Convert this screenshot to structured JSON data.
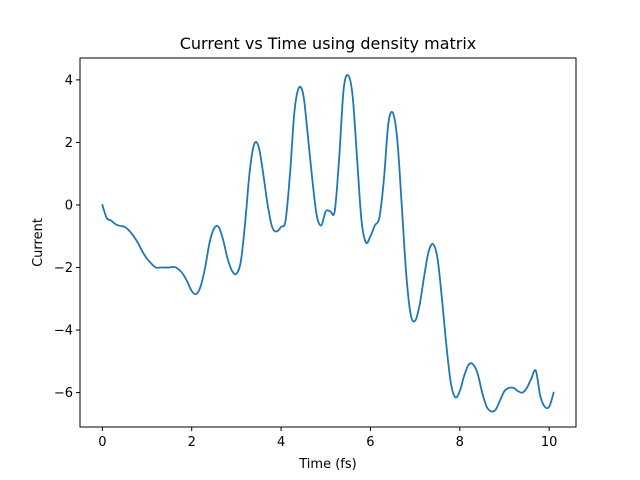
{
  "chart_data": {
    "type": "line",
    "title": "Current vs Time using density matrix",
    "xlabel": "Time (fs)",
    "ylabel": "Current",
    "xlim": [
      -0.5,
      10.6
    ],
    "ylim": [
      -7.1,
      4.7
    ],
    "xticks": [
      0,
      2,
      4,
      6,
      8,
      10
    ],
    "yticks": [
      -6,
      -4,
      -2,
      0,
      2,
      4
    ],
    "xtick_labels": [
      "0",
      "2",
      "4",
      "6",
      "8",
      "10"
    ],
    "ytick_labels": [
      "−6",
      "−4",
      "−2",
      "0",
      "2",
      "4"
    ],
    "grid": false,
    "legend": "none",
    "colors": {
      "line": "#1f77b4",
      "axes": "#000000",
      "background": "#ffffff"
    },
    "series": [
      {
        "x": [
          0,
          0.1,
          0.2,
          0.3,
          0.4,
          0.5,
          0.6,
          0.7,
          0.8,
          0.9,
          1.0,
          1.1,
          1.2,
          1.3,
          1.4,
          1.5,
          1.6,
          1.7,
          1.8,
          1.9,
          2.0,
          2.1,
          2.2,
          2.3,
          2.4,
          2.5,
          2.6,
          2.7,
          2.8,
          2.9,
          3.0,
          3.1,
          3.2,
          3.3,
          3.4,
          3.5,
          3.6,
          3.7,
          3.8,
          3.9,
          4.0,
          4.1,
          4.2,
          4.3,
          4.4,
          4.5,
          4.6,
          4.7,
          4.8,
          4.9,
          5.0,
          5.1,
          5.2,
          5.3,
          5.4,
          5.5,
          5.6,
          5.7,
          5.8,
          5.9,
          6.0,
          6.1,
          6.2,
          6.3,
          6.4,
          6.5,
          6.6,
          6.7,
          6.8,
          6.9,
          7.0,
          7.1,
          7.2,
          7.3,
          7.4,
          7.5,
          7.6,
          7.7,
          7.8,
          7.9,
          8.0,
          8.1,
          8.2,
          8.3,
          8.4,
          8.5,
          8.6,
          8.7,
          8.8,
          8.9,
          9.0,
          9.1,
          9.2,
          9.3,
          9.4,
          9.5,
          9.6,
          9.7,
          9.8,
          9.9,
          10.0,
          10.1
        ],
        "y": [
          0,
          -0.42,
          -0.5,
          -0.62,
          -0.67,
          -0.7,
          -0.82,
          -1.0,
          -1.22,
          -1.5,
          -1.72,
          -1.88,
          -2.0,
          -2.0,
          -2.0,
          -2.0,
          -1.98,
          -2.05,
          -2.2,
          -2.45,
          -2.75,
          -2.85,
          -2.6,
          -2.0,
          -1.2,
          -0.75,
          -0.7,
          -1.1,
          -1.7,
          -2.1,
          -2.2,
          -1.8,
          -0.5,
          1.1,
          1.95,
          1.85,
          1.0,
          0.0,
          -0.7,
          -0.85,
          -0.7,
          -0.5,
          1.0,
          3.0,
          3.75,
          3.5,
          2.2,
          0.8,
          -0.35,
          -0.65,
          -0.2,
          -0.2,
          -0.2,
          1.5,
          3.7,
          4.15,
          3.5,
          1.5,
          -0.5,
          -1.2,
          -1.0,
          -0.65,
          -0.4,
          0.8,
          2.6,
          2.95,
          2.1,
          0.0,
          -2.2,
          -3.5,
          -3.7,
          -3.2,
          -2.3,
          -1.5,
          -1.25,
          -1.7,
          -3.0,
          -4.5,
          -5.7,
          -6.15,
          -5.95,
          -5.45,
          -5.1,
          -5.1,
          -5.4,
          -6.0,
          -6.45,
          -6.6,
          -6.55,
          -6.25,
          -5.95,
          -5.85,
          -5.85,
          -5.95,
          -6.0,
          -5.85,
          -5.55,
          -5.3,
          -6.1,
          -6.45,
          -6.45,
          -6.0
        ]
      }
    ]
  }
}
